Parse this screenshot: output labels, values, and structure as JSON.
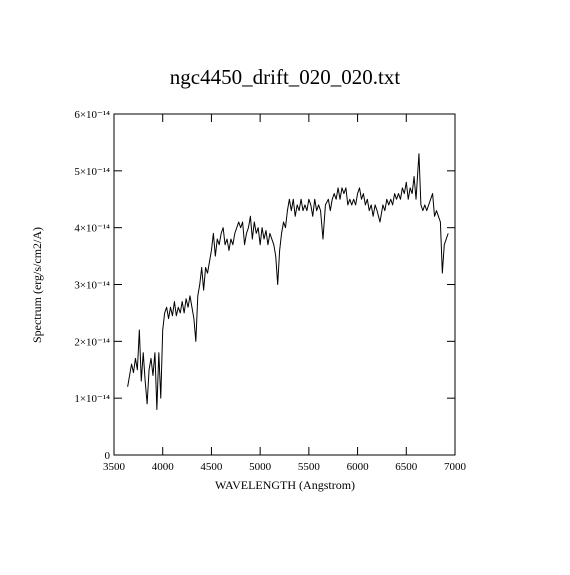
{
  "chart_data": {
    "type": "line",
    "title": "ngc4450_drift_020_020.txt",
    "x_label": "WAVELENGTH (Angstrom)",
    "y_label": "Spectrum (erg/s/cm2/A)",
    "xlim": [
      3500,
      7000
    ],
    "xticks": [
      3500,
      4000,
      4500,
      5000,
      5500,
      6000,
      6500,
      7000
    ],
    "ylim": [
      0,
      6e-14
    ],
    "yticks": [
      0,
      {
        "value": 1e-14,
        "label": "1×10⁻¹⁴"
      },
      {
        "value": 2e-14,
        "label": "2×10⁻¹⁴"
      },
      {
        "value": 3e-14,
        "label": "3×10⁻¹⁴"
      },
      {
        "value": 4e-14,
        "label": "4×10⁻¹⁴"
      },
      {
        "value": 5e-14,
        "label": "5×10⁻¹⁴"
      },
      {
        "value": 6e-14,
        "label": "6×10⁻¹⁴"
      }
    ],
    "color": "#000000",
    "x": [
      3640,
      3660,
      3680,
      3700,
      3720,
      3740,
      3760,
      3780,
      3800,
      3820,
      3840,
      3860,
      3880,
      3900,
      3920,
      3940,
      3960,
      3980,
      4000,
      4020,
      4040,
      4060,
      4080,
      4100,
      4120,
      4140,
      4160,
      4180,
      4200,
      4220,
      4240,
      4260,
      4280,
      4300,
      4320,
      4340,
      4360,
      4380,
      4400,
      4420,
      4440,
      4460,
      4480,
      4500,
      4520,
      4540,
      4560,
      4580,
      4600,
      4620,
      4640,
      4660,
      4680,
      4700,
      4720,
      4740,
      4760,
      4780,
      4800,
      4820,
      4840,
      4860,
      4880,
      4900,
      4920,
      4940,
      4960,
      4980,
      5000,
      5020,
      5040,
      5060,
      5080,
      5100,
      5120,
      5140,
      5160,
      5180,
      5200,
      5220,
      5240,
      5260,
      5280,
      5300,
      5320,
      5340,
      5360,
      5380,
      5400,
      5420,
      5440,
      5460,
      5480,
      5500,
      5520,
      5540,
      5560,
      5580,
      5600,
      5620,
      5645,
      5670,
      5700,
      5720,
      5740,
      5760,
      5780,
      5800,
      5820,
      5840,
      5860,
      5880,
      5900,
      5920,
      5940,
      5960,
      5980,
      6000,
      6020,
      6040,
      6060,
      6080,
      6100,
      6120,
      6140,
      6160,
      6180,
      6200,
      6230,
      6260,
      6280,
      6300,
      6320,
      6340,
      6360,
      6380,
      6400,
      6420,
      6440,
      6460,
      6480,
      6500,
      6520,
      6540,
      6560,
      6580,
      6600,
      6630,
      6650,
      6670,
      6690,
      6710,
      6730,
      6750,
      6770,
      6790,
      6810,
      6830,
      6850,
      6870,
      6890,
      6910,
      6930
    ],
    "values": [
      1.2e-14,
      1.4e-14,
      1.6e-14,
      1.45e-14,
      1.7e-14,
      1.5e-14,
      2.2e-14,
      1.3e-14,
      1.8e-14,
      1.3e-14,
      9e-15,
      1.5e-14,
      1.7e-14,
      1.4e-14,
      1.8e-14,
      8e-15,
      1.8e-14,
      1e-14,
      2.2e-14,
      2.5e-14,
      2.6e-14,
      2.4e-14,
      2.6e-14,
      2.45e-14,
      2.7e-14,
      2.45e-14,
      2.6e-14,
      2.5e-14,
      2.7e-14,
      2.5e-14,
      2.75e-14,
      2.6e-14,
      2.8e-14,
      2.6e-14,
      2.4e-14,
      2e-14,
      2.8e-14,
      3e-14,
      3.3e-14,
      2.9e-14,
      3.3e-14,
      3.2e-14,
      3.4e-14,
      3.6e-14,
      3.9e-14,
      3.5e-14,
      3.8e-14,
      3.7e-14,
      3.9e-14,
      4e-14,
      3.7e-14,
      3.8e-14,
      3.6e-14,
      3.8e-14,
      3.7e-14,
      3.9e-14,
      4e-14,
      4.1e-14,
      4e-14,
      4.1e-14,
      3.7e-14,
      3.9e-14,
      4e-14,
      4.2e-14,
      3.8e-14,
      4.1e-14,
      3.9e-14,
      4e-14,
      3.7e-14,
      4e-14,
      3.8e-14,
      3.95e-14,
      3.7e-14,
      3.9e-14,
      3.8e-14,
      3.7e-14,
      3.5e-14,
      3e-14,
      3.6e-14,
      3.9e-14,
      4.1e-14,
      4e-14,
      4.3e-14,
      4.5e-14,
      4.3e-14,
      4.5e-14,
      4.2e-14,
      4.4e-14,
      4.3e-14,
      4.5e-14,
      4.3e-14,
      4.4e-14,
      4.3e-14,
      4.5e-14,
      4.4e-14,
      4.2e-14,
      4.5e-14,
      4.3e-14,
      4.4e-14,
      4.3e-14,
      3.8e-14,
      4.4e-14,
      4.5e-14,
      4.3e-14,
      4.5e-14,
      4.6e-14,
      4.5e-14,
      4.7e-14,
      4.5e-14,
      4.7e-14,
      4.6e-14,
      4.7e-14,
      4.4e-14,
      4.5e-14,
      4.4e-14,
      4.5e-14,
      4.4e-14,
      4.6e-14,
      4.7e-14,
      4.5e-14,
      4.6e-14,
      4.4e-14,
      4.5e-14,
      4.3e-14,
      4.4e-14,
      4.2e-14,
      4.4e-14,
      4.3e-14,
      4.1e-14,
      4.4e-14,
      4.3e-14,
      4.5e-14,
      4.4e-14,
      4.5e-14,
      4.4e-14,
      4.6e-14,
      4.5e-14,
      4.6e-14,
      4.5e-14,
      4.7e-14,
      4.6e-14,
      4.8e-14,
      4.5e-14,
      4.7e-14,
      4.6e-14,
      4.9e-14,
      4.5e-14,
      5.3e-14,
      4.4e-14,
      4.3e-14,
      4.4e-14,
      4.3e-14,
      4.4e-14,
      4.5e-14,
      4.6e-14,
      4.2e-14,
      4.3e-14,
      4.2e-14,
      4.1e-14,
      3.2e-14,
      3.7e-14,
      3.8e-14,
      3.9e-14
    ]
  }
}
